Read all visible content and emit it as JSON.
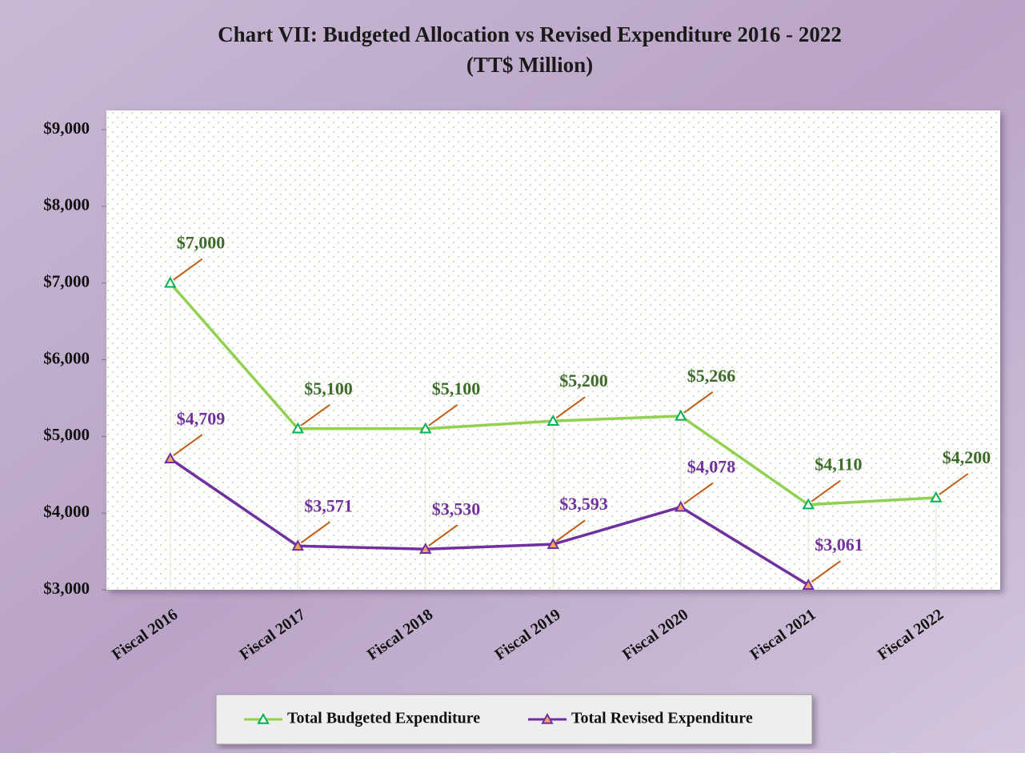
{
  "chart_data": {
    "type": "line",
    "title": "Chart VII: Budgeted Allocation  vs Revised Expenditure 2016 - 2022",
    "subtitle": "(TT$ Million)",
    "categories": [
      "Fiscal 2016",
      "Fiscal 2017",
      "Fiscal 2018",
      "Fiscal 2019",
      "Fiscal 2020",
      "Fiscal 2021",
      "Fiscal 2022"
    ],
    "series": [
      {
        "name": "Total Budgeted Expenditure",
        "color": "#92d050",
        "marker_color": "#00b050",
        "label_color": "#3c6b2a",
        "values": [
          7000,
          5100,
          5100,
          5200,
          5266,
          4110,
          4200
        ],
        "value_labels": [
          "$7,000",
          "$5,100",
          "$5,100",
          "$5,200",
          "$5,266",
          "$4,110",
          "$4,200"
        ]
      },
      {
        "name": "Total Revised Expenditure",
        "color": "#7030a0",
        "marker_color": "#f4a460",
        "label_color": "#7030a0",
        "values": [
          4709,
          3571,
          3530,
          3593,
          4078,
          3061,
          null
        ],
        "value_labels": [
          "$4,709",
          "$3,571",
          "$3,530",
          "$3,593",
          "$4,078",
          "$3,061",
          null
        ]
      }
    ],
    "ylim": [
      3000,
      9000
    ],
    "yticks": [
      {
        "value": 3000,
        "label": "$3,000"
      },
      {
        "value": 4000,
        "label": "$4,000"
      },
      {
        "value": 5000,
        "label": "$5,000"
      },
      {
        "value": 6000,
        "label": "$6,000"
      },
      {
        "value": 7000,
        "label": "$7,000"
      },
      {
        "value": 8000,
        "label": "$8,000"
      },
      {
        "value": 9000,
        "label": "$9,000"
      }
    ],
    "legend": "bottom"
  }
}
